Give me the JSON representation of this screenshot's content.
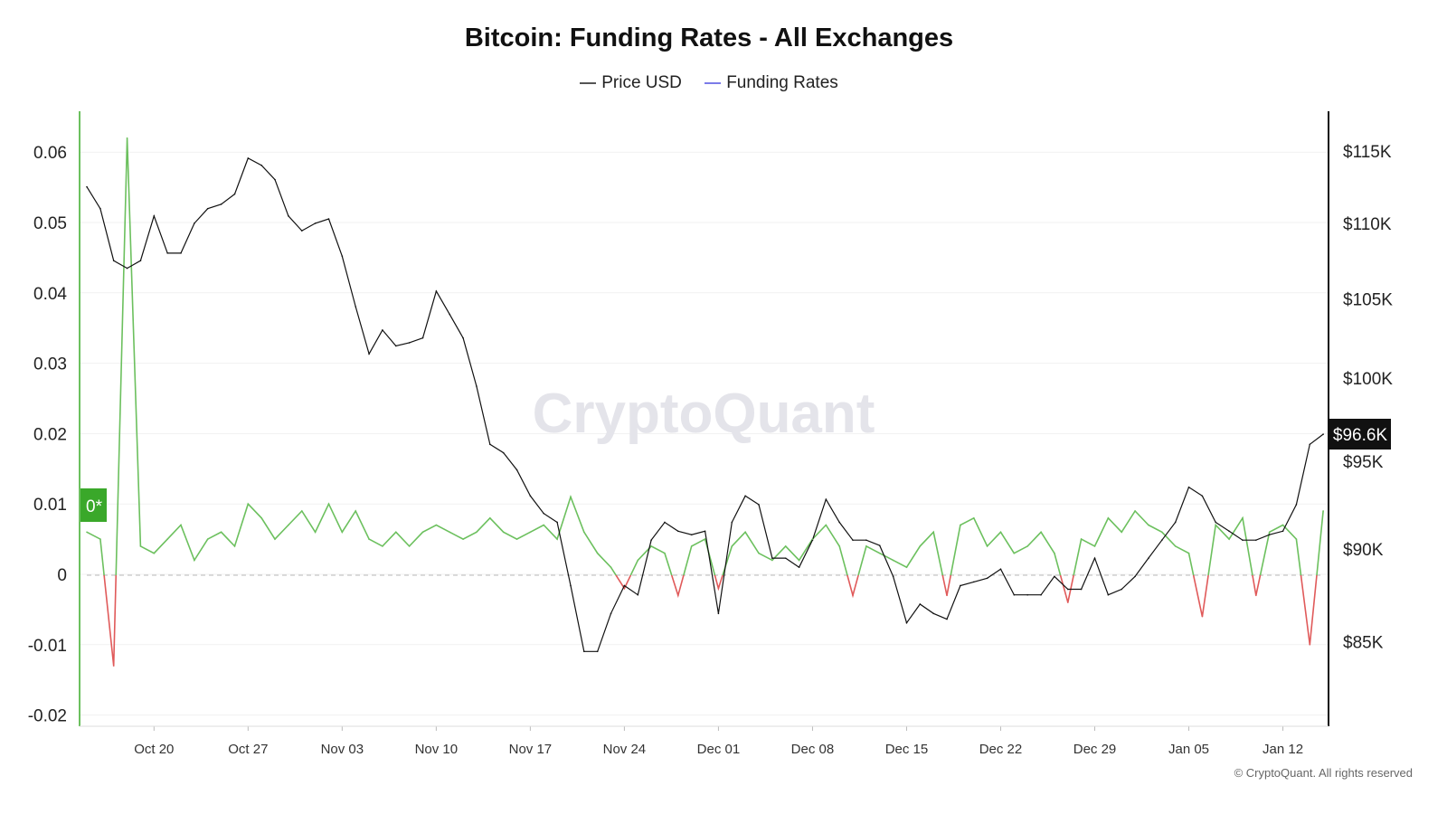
{
  "chart_data": {
    "type": "line",
    "title": "Bitcoin: Funding Rates - All Exchanges",
    "legend": {
      "placement": "top",
      "entries": [
        "Price USD",
        "Funding Rates"
      ]
    },
    "legend_colors": {
      "Price USD": "#555555",
      "Funding Rates": "#7b7be8"
    },
    "grid": true,
    "left_axis": {
      "ticks": [
        0.06,
        0.05,
        0.04,
        0.03,
        0.02,
        0.01,
        0,
        -0.01,
        -0.02
      ],
      "tick_labels": [
        "0.06",
        "0.05",
        "0.04",
        "0.03",
        "0.02",
        "0.01",
        "0",
        "-0.01",
        "-0.02"
      ],
      "ylim": [
        -0.0215,
        0.0655
      ]
    },
    "right_axis": {
      "scale": "log",
      "tick_labels": [
        "$115K",
        "$110K",
        "$105K",
        "$100K",
        "$95K",
        "$90K",
        "$85K"
      ],
      "ticks": [
        115,
        110,
        105,
        100,
        95,
        90,
        85
      ],
      "unit": "thousand USD"
    },
    "x_tick_labels": [
      "Oct 20",
      "Oct 27",
      "Nov 03",
      "Nov 10",
      "Nov 17",
      "Nov 24",
      "Dec 01",
      "Dec 08",
      "Dec 15",
      "Dec 22",
      "Dec 29",
      "Jan 05",
      "Jan 12"
    ],
    "x_start": "Oct 15",
    "current_price_label": "$96.6K",
    "current_funding_label": "0*",
    "colors": {
      "price": "#111111",
      "funding_positive": "#6cc05e",
      "funding_negative": "#e05a5a",
      "left_axis": "#6cc05e",
      "badge": "#3aa82a"
    },
    "series": [
      {
        "name": "Price USD",
        "axis": "right",
        "unit": "thousand USD",
        "values": [
          112.5,
          111,
          107.5,
          107,
          107.5,
          110.5,
          108,
          108,
          110,
          111,
          111.3,
          112,
          114.5,
          114,
          113,
          110.5,
          109.5,
          110,
          110.3,
          107.8,
          104.5,
          101.5,
          103,
          102,
          102.2,
          102.5,
          105.5,
          104,
          102.5,
          99.5,
          96,
          95.5,
          94.5,
          93,
          92,
          91.5,
          88,
          84.5,
          84.5,
          86.5,
          88,
          87.5,
          90.5,
          91.5,
          91,
          90.8,
          91,
          86.5,
          91.5,
          93,
          92.5,
          89.5,
          89.5,
          89,
          90.5,
          92.8,
          91.5,
          90.5,
          90.5,
          90.2,
          88.5,
          86,
          87,
          86.5,
          86.2,
          88,
          88.2,
          88.4,
          88.9,
          87.5,
          87.5,
          87.5,
          88.5,
          87.8,
          87.8,
          89.5,
          87.5,
          87.8,
          88.5,
          89.5,
          90.5,
          91.5,
          93.5,
          93,
          91.5,
          91,
          90.5,
          90.5,
          90.8,
          91,
          92.5,
          96,
          96.6
        ]
      },
      {
        "name": "Funding Rates",
        "axis": "left",
        "values": [
          0.006,
          0.005,
          -0.013,
          0.062,
          0.004,
          0.003,
          0.005,
          0.007,
          0.002,
          0.005,
          0.006,
          0.004,
          0.01,
          0.008,
          0.005,
          0.007,
          0.009,
          0.006,
          0.01,
          0.006,
          0.009,
          0.005,
          0.004,
          0.006,
          0.004,
          0.006,
          0.007,
          0.006,
          0.005,
          0.006,
          0.008,
          0.006,
          0.005,
          0.006,
          0.007,
          0.005,
          0.011,
          0.006,
          0.003,
          0.001,
          -0.002,
          0.002,
          0.004,
          0.003,
          -0.003,
          0.004,
          0.005,
          -0.002,
          0.004,
          0.006,
          0.003,
          0.002,
          0.004,
          0.002,
          0.005,
          0.007,
          0.004,
          -0.003,
          0.004,
          0.003,
          0.002,
          0.001,
          0.004,
          0.006,
          -0.003,
          0.007,
          0.008,
          0.004,
          0.006,
          0.003,
          0.004,
          0.006,
          0.003,
          -0.004,
          0.005,
          0.004,
          0.008,
          0.006,
          0.009,
          0.007,
          0.006,
          0.004,
          0.003,
          -0.006,
          0.007,
          0.005,
          0.008,
          -0.003,
          0.006,
          0.007,
          0.005,
          -0.01,
          0.009
        ]
      }
    ]
  },
  "watermark": "CryptoQuant",
  "footer": "© CryptoQuant. All rights reserved"
}
